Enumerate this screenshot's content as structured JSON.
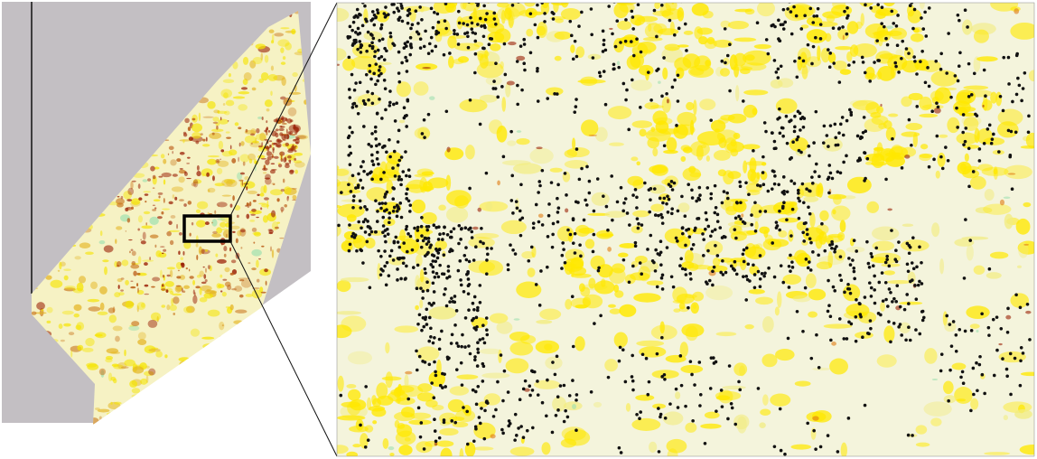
{
  "figure": {
    "type": "map-inset-zoom",
    "colors": {
      "background_gray": "#c3bfc3",
      "pale_base": "#f4f4dc",
      "yellow": "#f5e400",
      "bright_yellow": "#ffe800",
      "orange": "#e07a10",
      "dark_red": "#9a1f05",
      "green_tint": "#9ee0b0",
      "points": "#111111",
      "frame": "#000000"
    },
    "overview_map": {
      "description_tags": [
        "raster-classification",
        "survey-strip"
      ],
      "has_highlight_box": true
    },
    "zoom_panel": {
      "has_point_markers": true,
      "marker_style": "black-dots"
    }
  }
}
